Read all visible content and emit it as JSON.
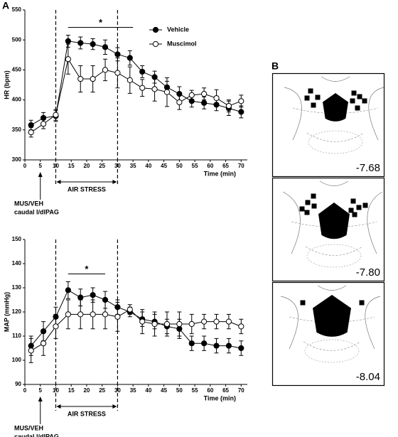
{
  "panel_labels": [
    "A",
    "B"
  ],
  "sections": [
    "-7.68",
    "-7.80",
    "-8.04"
  ],
  "chart_data": [
    {
      "type": "line",
      "ylabel": "HR (bpm)",
      "xlabel": "Time (min)",
      "xlim": [
        0,
        72
      ],
      "xticks": [
        0,
        5,
        10,
        15,
        20,
        25,
        30,
        35,
        40,
        45,
        50,
        55,
        60,
        65,
        70
      ],
      "ylim": [
        300,
        550
      ],
      "yticks": [
        300,
        350,
        400,
        450,
        500,
        550
      ],
      "x": [
        2,
        6,
        10,
        14,
        18,
        22,
        26,
        30,
        34,
        38,
        42,
        46,
        50,
        54,
        58,
        62,
        66,
        70
      ],
      "series": [
        {
          "name": "Vehicle",
          "color": "#000000",
          "values": [
            358,
            370,
            373,
            498,
            495,
            493,
            488,
            476,
            470,
            447,
            438,
            421,
            410,
            398,
            395,
            392,
            386,
            380
          ],
          "errors": [
            8,
            9,
            9,
            10,
            10,
            9,
            12,
            11,
            12,
            10,
            10,
            10,
            12,
            10,
            10,
            10,
            12,
            10
          ]
        },
        {
          "name": "Muscimol",
          "color": "#ffffff",
          "values": [
            346,
            360,
            375,
            468,
            435,
            435,
            450,
            445,
            433,
            420,
            418,
            413,
            396,
            408,
            410,
            403,
            390,
            398
          ],
          "errors": [
            8,
            8,
            9,
            25,
            22,
            22,
            18,
            25,
            22,
            14,
            20,
            24,
            12,
            8,
            10,
            14,
            10,
            10
          ]
        }
      ],
      "significance": {
        "label": "*",
        "from": 14,
        "to": 35
      },
      "stress": {
        "label": "AIR STRESS",
        "from": 10,
        "to": 30
      },
      "injection": {
        "x": 5,
        "lines": [
          "MUS/VEH",
          "caudal l/dlPAG"
        ]
      }
    },
    {
      "type": "line",
      "ylabel": "MAP (mmHg)",
      "xlabel": "Time (min)",
      "xlim": [
        0,
        72
      ],
      "xticks": [
        0,
        5,
        10,
        15,
        20,
        25,
        30,
        35,
        40,
        45,
        50,
        55,
        60,
        65,
        70
      ],
      "ylim": [
        90,
        150
      ],
      "yticks": [
        90,
        100,
        110,
        120,
        130,
        140,
        150
      ],
      "x": [
        2,
        6,
        10,
        14,
        18,
        22,
        26,
        30,
        34,
        38,
        42,
        46,
        50,
        54,
        58,
        62,
        66,
        70
      ],
      "series": [
        {
          "color": "#000000",
          "values": [
            106,
            112,
            118,
            129,
            126,
            127,
            125,
            122,
            120,
            117,
            116,
            114,
            113,
            107,
            107,
            106,
            106,
            105
          ],
          "errors": [
            4,
            4,
            4,
            3.5,
            3.5,
            3,
            3.5,
            3,
            2,
            3,
            3,
            3,
            4,
            3,
            3,
            3,
            3,
            3
          ]
        },
        {
          "color": "#ffffff",
          "values": [
            104,
            107,
            114,
            119,
            119,
            119,
            119,
            118,
            121,
            116,
            115,
            115,
            115,
            115,
            116,
            116,
            116,
            114
          ],
          "errors": [
            5,
            5,
            5,
            6,
            6,
            6,
            6,
            6,
            2,
            5,
            5,
            5,
            5,
            4,
            3,
            3,
            3,
            3
          ]
        }
      ],
      "significance": {
        "label": "*",
        "from": 14,
        "to": 26
      },
      "stress": {
        "label": "AIR STRESS",
        "from": 10,
        "to": 30
      },
      "injection": {
        "x": 5,
        "lines": [
          "MUS/VEH",
          "caudal l/dlPAG"
        ]
      }
    }
  ]
}
